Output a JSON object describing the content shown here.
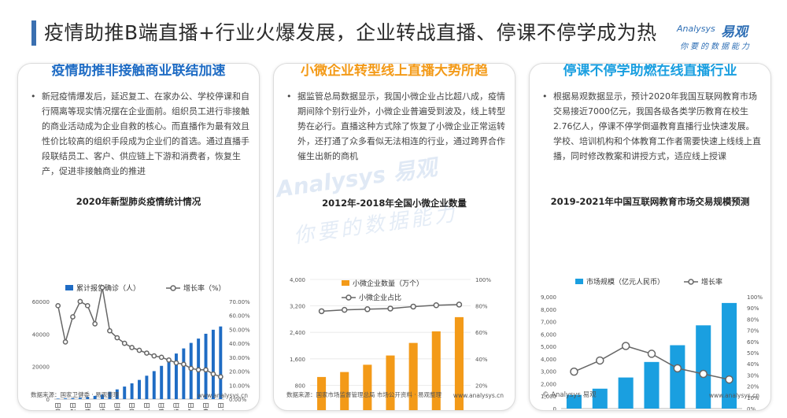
{
  "header": {
    "title": "疫情助推B端直播+行业火爆发展，企业转战直播、停课不停学成为热",
    "logo_en": "Analysys",
    "logo_cn": "易观",
    "logo_slogan": "你要的数据能力"
  },
  "colors": {
    "blue": "#1f6cc4",
    "orange": "#f39a18",
    "cyan": "#1a9fe0",
    "line": "#666666"
  },
  "watermark": {
    "line1": "Analysys 易观",
    "line2": "你要的数据能力"
  },
  "panels": [
    {
      "title": "疫情助推非接触商业联结加速",
      "bullet": "•",
      "text": "新冠疫情爆发后，延迟复工、在家办公、学校停课和自行隔离等现实情况摆在企业面前。组织员工进行非接触的商业活动成为企业自救的核心。而直播作为最有效且性价比较高的组织手段成为企业们的首选。通过直播手段联结员工、客户、供应链上下游和消费者，恢复生产，促进非接触商业的推进",
      "source": "数据来源：国家卫健委 · 易观整理",
      "site": "www.analysys.cn"
    },
    {
      "title": "小微企业转型线上直播大势所趋",
      "bullet": "•",
      "text": "据监管总局数据显示，我国小微企业占比超八成，疫情期间除个别行业外，小微企业普遍受到波及，线上转型势在必行。直播这种方式除了恢复了小微企业正常运转外，还打通了众多看似无法相连的行业，通过跨界合作催生出新的商机",
      "source": "数据来源：国家市场监督管理总局 市场公开资料 · 易观整理",
      "site": "www.analysys.cn"
    },
    {
      "title": "停课不停学助燃在线直播行业",
      "bullet": "•",
      "text": "根据易观数据显示，预计2020年我国互联网教育市场交易接近7000亿元，我国各级各类学历教育在校生2.76亿人，停课不停学倒逼教育直播行业快速发展。学校、培训机构和个体教育工作者需要快速上线线上直播，同时修改教案和讲授方式，适应线上授课",
      "copyright": "© Analysys 易观",
      "site": "www.analysys.cn"
    }
  ],
  "chart_data": [
    {
      "type": "bar",
      "title": "2020年新型肺炎疫情统计情况",
      "categories": [
        "1月20日",
        "1月21日",
        "1月22日",
        "1月23日",
        "1月24日",
        "1月25日",
        "1月26日",
        "1月27日",
        "1月28日",
        "1月29日",
        "1月30日",
        "1月31日",
        "2月1日",
        "2月2日",
        "2月3日",
        "2月4日",
        "2月5日",
        "2月6日",
        "2月7日",
        "2月8日",
        "2月9日",
        "2月10日",
        "2月11日"
      ],
      "x_tick_labels": [
        "1月20日",
        "1月22日",
        "1月24日",
        "1月26日",
        "1月28日",
        "1月30日",
        "2月1日",
        "2月3日",
        "2月5日",
        "2月7日",
        "2月9日",
        "2月11日"
      ],
      "series": [
        {
          "name": "累计报告确诊（人）",
          "kind": "bar",
          "axis": "left",
          "values": [
            291,
            440,
            571,
            830,
            1287,
            1975,
            2744,
            4515,
            5974,
            7711,
            9692,
            11791,
            14380,
            17205,
            20438,
            24324,
            28018,
            31161,
            34546,
            37198,
            40171,
            42638,
            44653
          ]
        },
        {
          "name": "增长率（%）",
          "kind": "line",
          "axis": "right",
          "values": [
            67,
            41,
            59,
            70,
            67,
            54,
            80,
            49,
            44,
            40,
            37,
            35,
            33,
            31,
            30,
            28,
            26,
            25,
            22,
            21,
            21,
            18,
            16
          ]
        }
      ],
      "ylim": [
        0,
        60000
      ],
      "yticks": [
        0,
        20000,
        40000,
        60000
      ],
      "y2lim": [
        0,
        70
      ],
      "y2ticks": [
        "0.00%",
        "10.00%",
        "20.00%",
        "30.00%",
        "40.00%",
        "50.00%",
        "60.00%",
        "70.00%"
      ],
      "legend": "top"
    },
    {
      "type": "bar",
      "title": "2012年-2018年全国小微企业数量",
      "categories": [
        "2012",
        "2013",
        "2014",
        "2015",
        "2016",
        "2017",
        "2018"
      ],
      "series": [
        {
          "name": "小微企业数量（万个）",
          "kind": "bar",
          "axis": "left",
          "values": [
            1050,
            1200,
            1420,
            1700,
            2080,
            2430,
            2860
          ]
        },
        {
          "name": "小微企业占比",
          "kind": "line",
          "axis": "right",
          "values": [
            76,
            77,
            77.5,
            78,
            79.5,
            80.5,
            81
          ]
        }
      ],
      "ylim": [
        0,
        4000
      ],
      "yticks": [
        "0",
        "800",
        "1,600",
        "2,400",
        "3,200",
        "4,000"
      ],
      "y2lim": [
        0,
        100
      ],
      "y2ticks": [
        "0%",
        "20%",
        "40%",
        "60%",
        "80%",
        "100%"
      ],
      "legend": "top"
    },
    {
      "type": "bar",
      "title": "2019-2021年中国互联网教育市场交易规模预测",
      "categories": [
        "2015",
        "2016",
        "2017",
        "2018",
        "2019F",
        "2020F",
        "2021F"
      ],
      "series": [
        {
          "name": "市场规模（亿元人民币）",
          "kind": "bar",
          "axis": "left",
          "values": [
            1100,
            1600,
            2500,
            3750,
            5100,
            6700,
            8500
          ]
        },
        {
          "name": "增长率",
          "kind": "line",
          "axis": "right",
          "values": [
            33,
            43,
            56,
            49,
            36,
            31,
            26
          ]
        }
      ],
      "ylim": [
        0,
        9000
      ],
      "yticks": [
        "0",
        "1,000",
        "2,000",
        "3,000",
        "4,000",
        "5,000",
        "6,000",
        "7,000",
        "8,000",
        "9,000"
      ],
      "y2lim": [
        0,
        100
      ],
      "y2ticks": [
        "0%",
        "10%",
        "20%",
        "30%",
        "40%",
        "50%",
        "60%",
        "70%",
        "80%",
        "90%",
        "100%"
      ],
      "legend": "top"
    }
  ]
}
